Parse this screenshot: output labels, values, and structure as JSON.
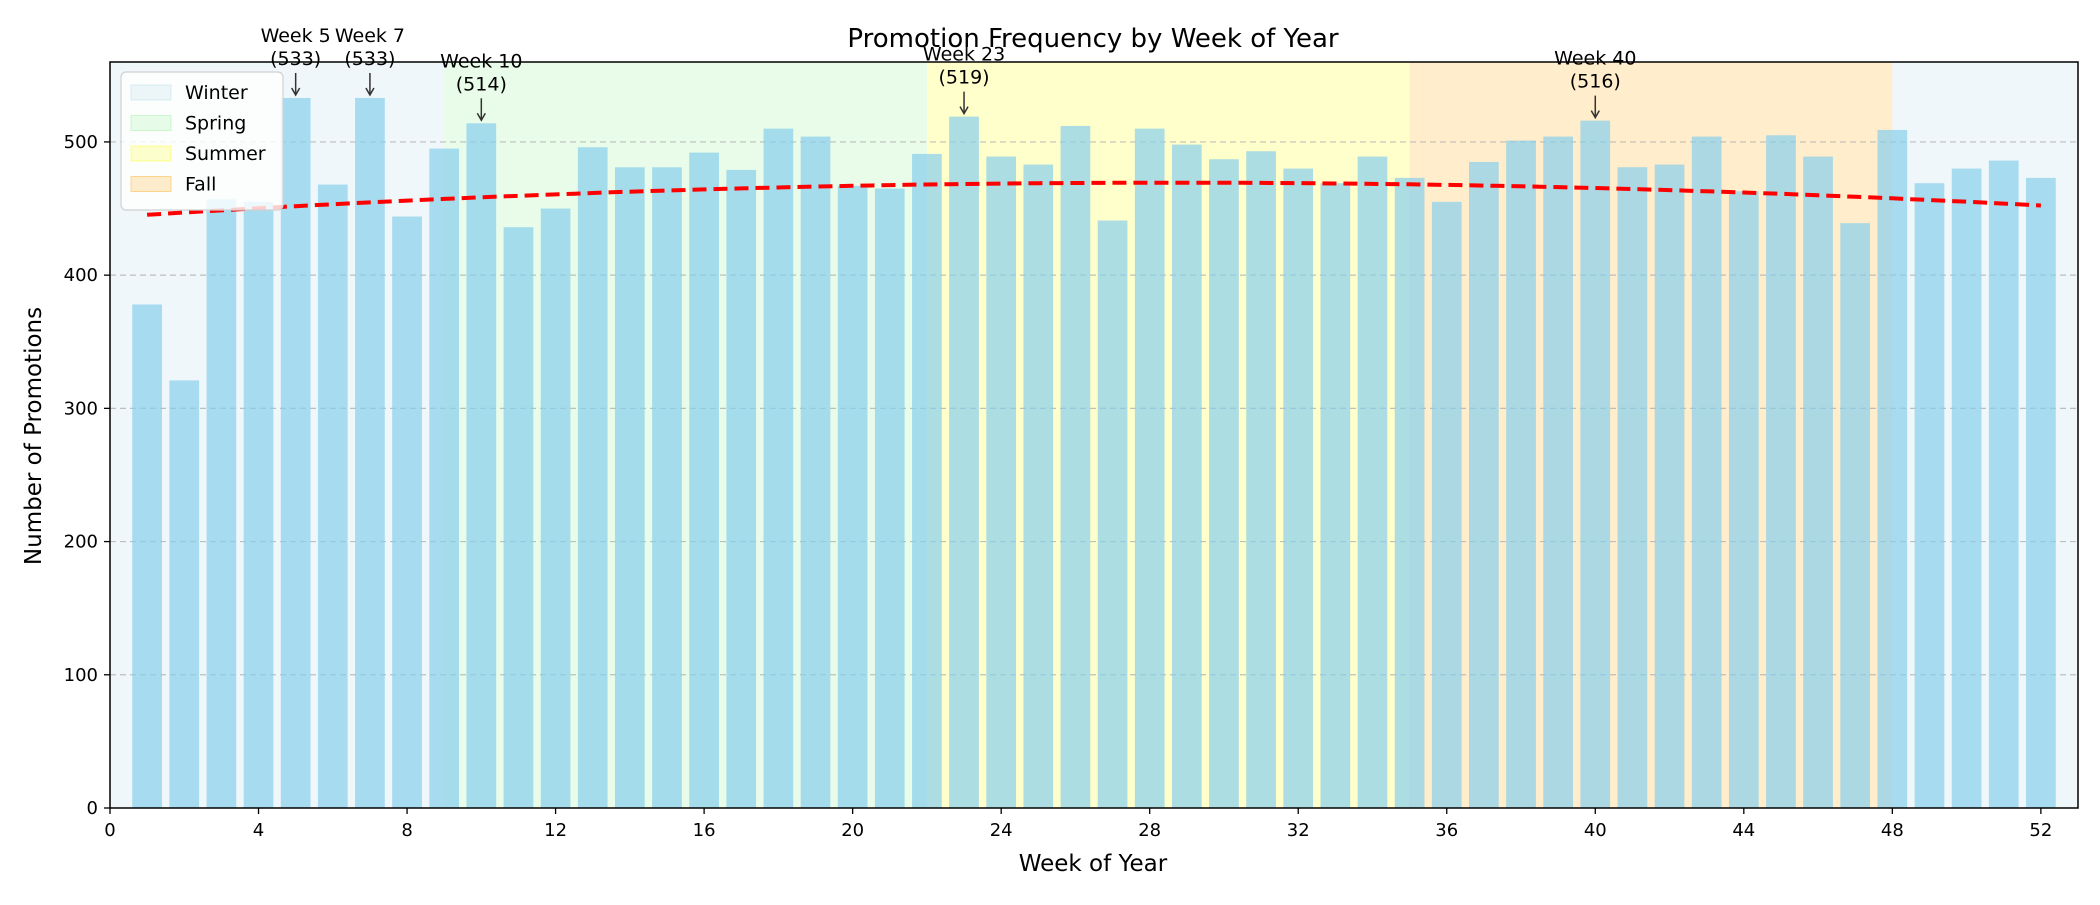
{
  "chart_data": {
    "type": "bar",
    "title": "Promotion Frequency by Week of Year",
    "xlabel": "Week of Year",
    "ylabel": "Number of Promotions",
    "xlim": [
      0,
      53
    ],
    "ylim": [
      0,
      560
    ],
    "xticks": [
      0,
      4,
      8,
      12,
      16,
      20,
      24,
      28,
      32,
      36,
      40,
      44,
      48,
      52
    ],
    "yticks": [
      0,
      100,
      200,
      300,
      400,
      500
    ],
    "grid": "y-dashed",
    "legend_position": "upper-left",
    "bar_color": "#87CEEB",
    "weeks": [
      1,
      2,
      3,
      4,
      5,
      6,
      7,
      8,
      9,
      10,
      11,
      12,
      13,
      14,
      15,
      16,
      17,
      18,
      19,
      20,
      21,
      22,
      23,
      24,
      25,
      26,
      27,
      28,
      29,
      30,
      31,
      32,
      33,
      34,
      35,
      36,
      37,
      38,
      39,
      40,
      41,
      42,
      43,
      44,
      45,
      46,
      47,
      48,
      49,
      50,
      51,
      52
    ],
    "values": [
      378,
      321,
      457,
      455,
      533,
      468,
      533,
      444,
      495,
      514,
      436,
      450,
      496,
      481,
      481,
      492,
      479,
      510,
      504,
      467,
      465,
      491,
      519,
      489,
      483,
      512,
      441,
      510,
      498,
      487,
      493,
      480,
      469,
      489,
      473,
      455,
      485,
      501,
      504,
      516,
      481,
      483,
      504,
      463,
      505,
      489,
      439,
      509,
      469,
      480,
      486,
      473
    ],
    "seasons": [
      {
        "name": "Winter",
        "start": 0,
        "end": 9,
        "color": "#ADD8E6",
        "opacity": 0.2
      },
      {
        "name": "Spring",
        "start": 9,
        "end": 22,
        "color": "#90EE90",
        "opacity": 0.2
      },
      {
        "name": "Summer",
        "start": 22,
        "end": 35,
        "color": "#FFFF00",
        "opacity": 0.2
      },
      {
        "name": "Fall",
        "start": 35,
        "end": 48,
        "color": "#FFA500",
        "opacity": 0.2
      },
      {
        "name": "Winter",
        "start": 48,
        "end": 53,
        "color": "#ADD8E6",
        "opacity": 0.2
      }
    ],
    "legend": [
      {
        "name": "Winter",
        "color": "#ADD8E6"
      },
      {
        "name": "Spring",
        "color": "#90EE90"
      },
      {
        "name": "Summer",
        "color": "#FFFF00"
      },
      {
        "name": "Fall",
        "color": "#FFA500"
      }
    ],
    "trend": {
      "color": "#FF0000",
      "style": "dashed",
      "x": [
        1,
        52
      ],
      "a": -0.0315,
      "b": 1.807,
      "c": 443.5
    },
    "annotations": [
      {
        "week": 5,
        "value": 533,
        "line1": "Week 5",
        "line2": "(533)"
      },
      {
        "week": 7,
        "value": 533,
        "line1": "Week 7",
        "line2": "(533)"
      },
      {
        "week": 10,
        "value": 514,
        "line1": "Week 10",
        "line2": "(514)"
      },
      {
        "week": 23,
        "value": 519,
        "line1": "Week 23",
        "line2": "(519)"
      },
      {
        "week": 40,
        "value": 516,
        "line1": "Week 40",
        "line2": "(516)"
      }
    ]
  }
}
